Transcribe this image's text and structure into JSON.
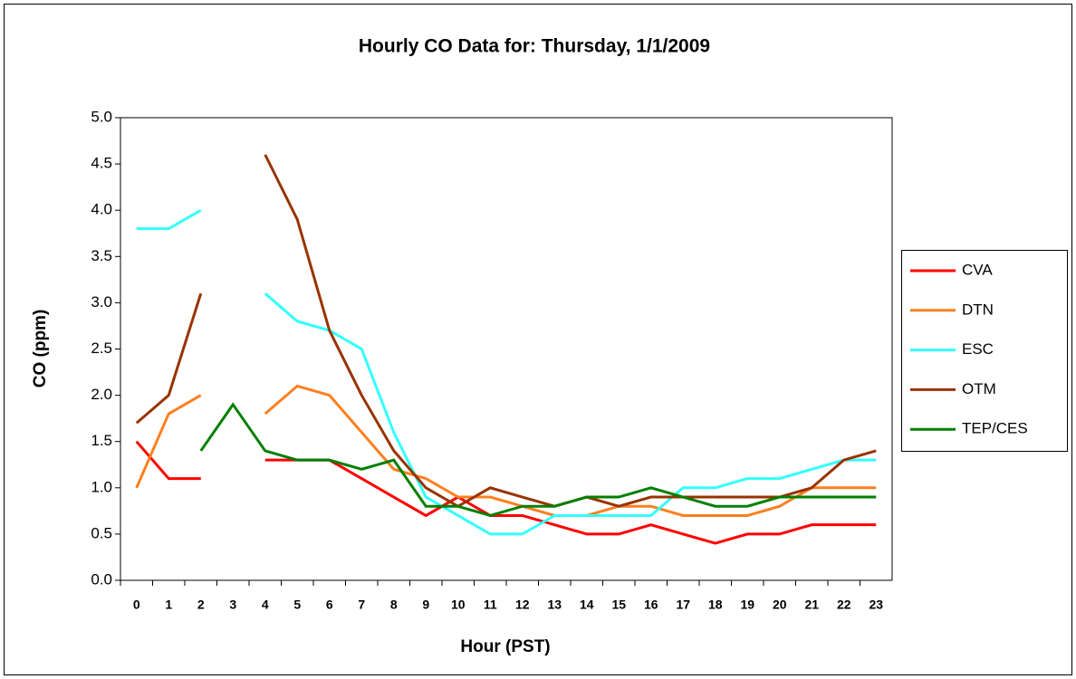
{
  "chart_data": {
    "type": "line",
    "title": "Hourly CO Data for: Thursday, 1/1/2009",
    "x_label": "Hour (PST)",
    "y_label": "CO (ppm)",
    "categories": [
      "0",
      "1",
      "2",
      "3",
      "4",
      "5",
      "6",
      "7",
      "8",
      "9",
      "10",
      "11",
      "12",
      "13",
      "14",
      "15",
      "16",
      "17",
      "18",
      "19",
      "20",
      "21",
      "22",
      "23"
    ],
    "series": [
      {
        "name": "CVA",
        "color": "#ff0000",
        "values": [
          1.5,
          1.1,
          1.1,
          null,
          1.3,
          1.3,
          1.3,
          1.1,
          0.9,
          0.7,
          0.9,
          0.7,
          0.7,
          0.6,
          0.5,
          0.5,
          0.6,
          0.5,
          0.4,
          0.5,
          0.5,
          0.6,
          0.6,
          0.6
        ]
      },
      {
        "name": "DTN",
        "color": "#ff7f1f",
        "values": [
          1.0,
          1.8,
          2.0,
          null,
          1.8,
          2.1,
          2.0,
          1.6,
          1.2,
          1.1,
          0.9,
          0.9,
          0.8,
          0.7,
          0.7,
          0.8,
          0.8,
          0.7,
          0.7,
          0.7,
          0.8,
          1.0,
          1.0,
          1.0
        ]
      },
      {
        "name": "ESC",
        "color": "#33ffff",
        "values": [
          3.8,
          3.8,
          4.0,
          null,
          3.1,
          2.8,
          2.7,
          2.5,
          1.6,
          0.9,
          0.7,
          0.5,
          0.5,
          0.7,
          0.7,
          0.7,
          0.7,
          1.0,
          1.0,
          1.1,
          1.1,
          1.2,
          1.3,
          1.3
        ]
      },
      {
        "name": "OTM",
        "color": "#993300",
        "values": [
          1.7,
          2.0,
          3.1,
          null,
          4.6,
          3.9,
          2.7,
          2.0,
          1.4,
          1.0,
          0.8,
          1.0,
          0.9,
          0.8,
          0.9,
          0.8,
          0.9,
          0.9,
          0.9,
          0.9,
          0.9,
          1.0,
          1.3,
          1.4
        ]
      },
      {
        "name": "TEP/CES",
        "color": "#008000",
        "values": [
          null,
          null,
          1.4,
          1.9,
          1.4,
          1.3,
          1.3,
          1.2,
          1.3,
          0.8,
          0.8,
          0.7,
          0.8,
          0.8,
          0.9,
          0.9,
          1.0,
          0.9,
          0.8,
          0.8,
          0.9,
          0.9,
          0.9,
          0.9
        ]
      }
    ],
    "ylim": [
      0,
      5
    ],
    "yticks": [
      {
        "value": 0,
        "label": "0.0"
      },
      {
        "value": 0.5,
        "label": "0.5"
      },
      {
        "value": 1,
        "label": "1.0"
      },
      {
        "value": 1.5,
        "label": "1.5"
      },
      {
        "value": 2,
        "label": "2.0"
      },
      {
        "value": 2.5,
        "label": "2.5"
      },
      {
        "value": 3,
        "label": "3.0"
      },
      {
        "value": 3.5,
        "label": "3.5"
      },
      {
        "value": 4,
        "label": "4.0"
      },
      {
        "value": 4.5,
        "label": "4.5"
      },
      {
        "value": 5,
        "label": "5.0"
      }
    ],
    "legend": "right"
  }
}
